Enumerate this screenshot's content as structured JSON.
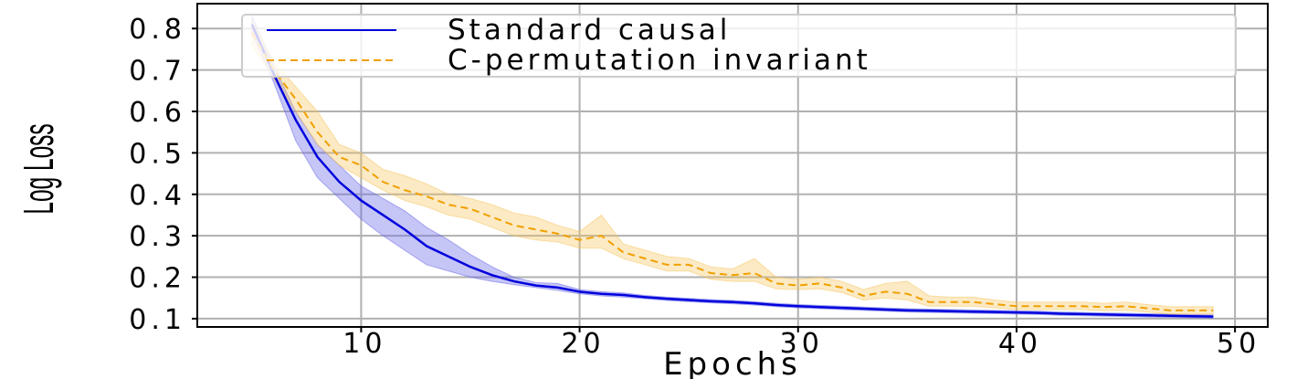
{
  "chart_data": {
    "type": "line",
    "xlabel": "Epochs",
    "ylabel": "Log Loss",
    "xlim": [
      2.5,
      51.5
    ],
    "ylim": [
      0.08,
      0.86
    ],
    "x_ticks": [
      10,
      20,
      30,
      40,
      50
    ],
    "y_ticks": [
      0.1,
      0.2,
      0.3,
      0.4,
      0.5,
      0.6,
      0.7,
      0.8
    ],
    "x_tick_labels": [
      "10",
      "20",
      "30",
      "40",
      "50"
    ],
    "y_tick_labels": [
      "0.1",
      "0.2",
      "0.3",
      "0.4",
      "0.5",
      "0.6",
      "0.7",
      "0.8"
    ],
    "grid": true,
    "legend_position": "top-right",
    "x": [
      5,
      6,
      7,
      8,
      9,
      10,
      11,
      12,
      13,
      14,
      15,
      16,
      17,
      18,
      19,
      20,
      21,
      22,
      23,
      24,
      25,
      26,
      27,
      28,
      29,
      30,
      31,
      32,
      33,
      34,
      35,
      36,
      37,
      38,
      39,
      40,
      41,
      42,
      43,
      44,
      45,
      46,
      47,
      48,
      49
    ],
    "series": [
      {
        "name": "Standard causal",
        "color": "#0000dd",
        "band_color": "#6666e8",
        "line_style": "solid",
        "values": [
          0.81,
          0.69,
          0.58,
          0.49,
          0.43,
          0.385,
          0.35,
          0.315,
          0.275,
          0.25,
          0.225,
          0.205,
          0.19,
          0.18,
          0.175,
          0.165,
          0.16,
          0.157,
          0.152,
          0.148,
          0.145,
          0.142,
          0.14,
          0.137,
          0.133,
          0.13,
          0.128,
          0.126,
          0.124,
          0.122,
          0.12,
          0.119,
          0.118,
          0.117,
          0.116,
          0.115,
          0.114,
          0.112,
          0.111,
          0.11,
          0.109,
          0.108,
          0.107,
          0.106,
          0.105
        ],
        "lower": [
          0.79,
          0.67,
          0.53,
          0.44,
          0.39,
          0.34,
          0.3,
          0.265,
          0.23,
          0.215,
          0.2,
          0.19,
          0.182,
          0.175,
          0.168,
          0.16,
          0.155,
          0.152,
          0.148,
          0.144,
          0.141,
          0.138,
          0.136,
          0.133,
          0.129,
          0.126,
          0.124,
          0.122,
          0.12,
          0.118,
          0.116,
          0.115,
          0.114,
          0.113,
          0.112,
          0.111,
          0.11,
          0.108,
          0.107,
          0.106,
          0.105,
          0.104,
          0.103,
          0.102,
          0.101
        ],
        "upper": [
          0.83,
          0.71,
          0.6,
          0.52,
          0.47,
          0.42,
          0.39,
          0.36,
          0.32,
          0.29,
          0.255,
          0.225,
          0.2,
          0.187,
          0.185,
          0.17,
          0.165,
          0.162,
          0.156,
          0.152,
          0.149,
          0.146,
          0.144,
          0.141,
          0.137,
          0.134,
          0.132,
          0.13,
          0.128,
          0.126,
          0.124,
          0.123,
          0.122,
          0.121,
          0.12,
          0.119,
          0.118,
          0.116,
          0.115,
          0.114,
          0.113,
          0.112,
          0.111,
          0.11,
          0.109
        ]
      },
      {
        "name": "C-permutation invariant",
        "color": "#f0a000",
        "band_color": "#f5c35a",
        "line_style": "dashed",
        "values": [
          0.79,
          0.7,
          0.63,
          0.55,
          0.49,
          0.47,
          0.43,
          0.41,
          0.395,
          0.375,
          0.365,
          0.345,
          0.325,
          0.315,
          0.305,
          0.29,
          0.3,
          0.26,
          0.245,
          0.23,
          0.23,
          0.21,
          0.205,
          0.21,
          0.185,
          0.18,
          0.185,
          0.175,
          0.155,
          0.165,
          0.16,
          0.14,
          0.14,
          0.14,
          0.135,
          0.13,
          0.13,
          0.13,
          0.13,
          0.128,
          0.13,
          0.125,
          0.12,
          0.12,
          0.12
        ],
        "lower": [
          0.76,
          0.68,
          0.6,
          0.52,
          0.47,
          0.44,
          0.41,
          0.385,
          0.37,
          0.35,
          0.34,
          0.32,
          0.3,
          0.29,
          0.285,
          0.27,
          0.27,
          0.245,
          0.23,
          0.215,
          0.215,
          0.195,
          0.19,
          0.19,
          0.172,
          0.17,
          0.172,
          0.163,
          0.145,
          0.15,
          0.145,
          0.13,
          0.13,
          0.13,
          0.126,
          0.122,
          0.122,
          0.122,
          0.122,
          0.119,
          0.12,
          0.116,
          0.111,
          0.111,
          0.111
        ],
        "upper": [
          0.82,
          0.72,
          0.66,
          0.6,
          0.52,
          0.5,
          0.46,
          0.445,
          0.425,
          0.4,
          0.39,
          0.375,
          0.355,
          0.345,
          0.325,
          0.31,
          0.35,
          0.28,
          0.265,
          0.25,
          0.245,
          0.225,
          0.22,
          0.245,
          0.2,
          0.195,
          0.2,
          0.19,
          0.17,
          0.185,
          0.19,
          0.155,
          0.152,
          0.152,
          0.145,
          0.14,
          0.14,
          0.14,
          0.14,
          0.137,
          0.14,
          0.134,
          0.129,
          0.129,
          0.129
        ]
      }
    ]
  }
}
